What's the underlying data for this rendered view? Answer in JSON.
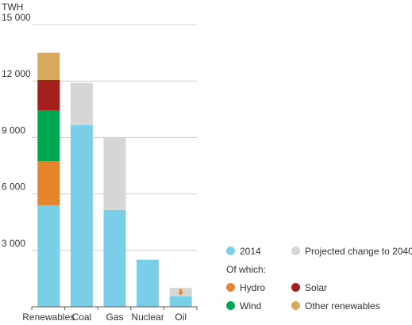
{
  "chart_data": {
    "type": "bar",
    "stacked": true,
    "ylabel": "TWH",
    "ylim": [
      0,
      15000
    ],
    "yticks": [
      3000,
      6000,
      9000,
      12000,
      15000
    ],
    "ytick_labels": [
      "3 000",
      "6 000",
      "9 000",
      "12 000",
      "15 000"
    ],
    "grid": true,
    "categories": [
      "Renewables",
      "Coal",
      "Gas",
      "Nuclear",
      "Oil"
    ],
    "series": [
      {
        "name": "2014",
        "key": "2014",
        "color": "#7acfe8",
        "values": [
          5400,
          9650,
          5150,
          2500,
          550
        ]
      },
      {
        "name": "Hydro",
        "key": "hydro",
        "color": "#e5852a",
        "values": [
          2350,
          0,
          0,
          0,
          0
        ]
      },
      {
        "name": "Wind",
        "key": "wind",
        "color": "#00a651",
        "values": [
          2700,
          0,
          0,
          0,
          0
        ]
      },
      {
        "name": "Solar",
        "key": "solar",
        "color": "#a3201c",
        "values": [
          1600,
          0,
          0,
          0,
          0
        ]
      },
      {
        "name": "Other renewables",
        "key": "other",
        "color": "#d8a95c",
        "values": [
          1450,
          0,
          0,
          0,
          0
        ]
      },
      {
        "name": "Projected change to 2040",
        "key": "projected",
        "color": "#d6d6d6",
        "values": [
          0,
          2250,
          3850,
          0,
          0
        ]
      }
    ],
    "annotations": [
      {
        "category": "Oil",
        "type": "decrease-arrow",
        "color": "#e5852a",
        "from": 1000,
        "to": 550
      }
    ],
    "legend_placement": "bottom-right"
  },
  "legend": {
    "row1": [
      {
        "label": "2014",
        "color": "#7acfe8"
      },
      {
        "label": "Projected change to 2040",
        "color": "#d6d6d6"
      }
    ],
    "heading": "Of which:",
    "row2": [
      {
        "label": "Hydro",
        "color": "#e5852a"
      },
      {
        "label": "Solar",
        "color": "#a3201c"
      }
    ],
    "row3": [
      {
        "label": "Wind",
        "color": "#00a651"
      },
      {
        "label": "Other renewables",
        "color": "#d8a95c"
      }
    ]
  }
}
